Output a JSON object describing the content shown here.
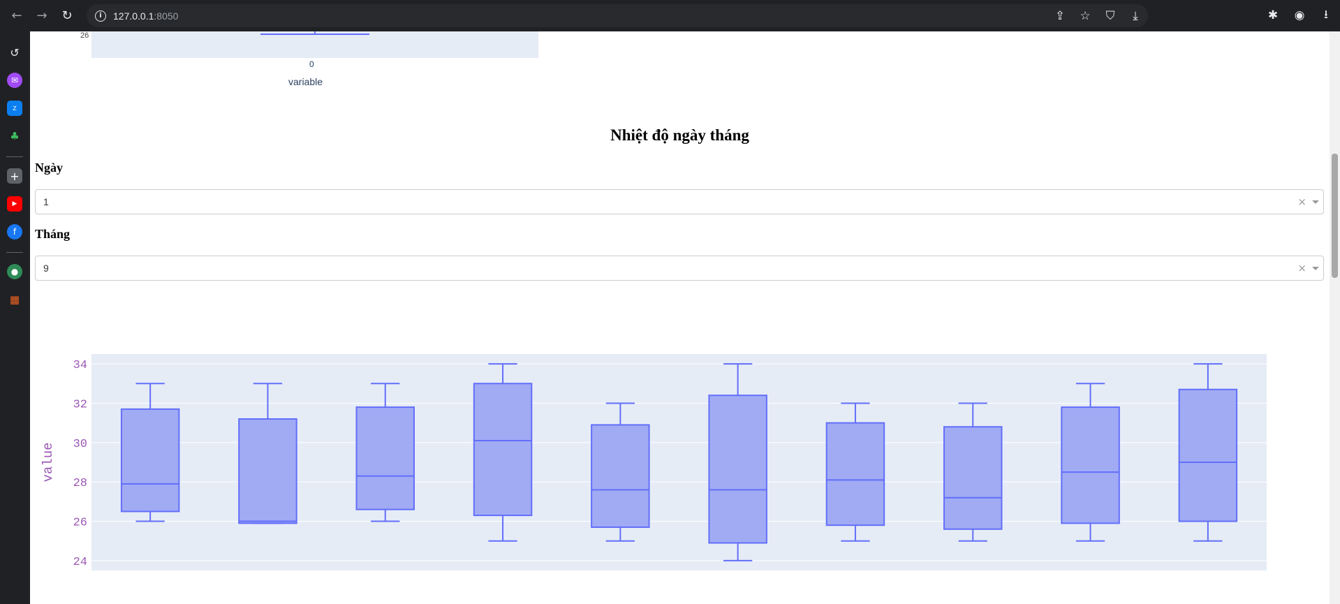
{
  "browser": {
    "url_host": "127.0.0.1",
    "url_port": ":8050"
  },
  "top_plot": {
    "ytick": "26",
    "xtick": "0",
    "xlabel": "variable"
  },
  "section": {
    "title": "Nhiệt độ ngày tháng"
  },
  "day_filter": {
    "label": "Ngày",
    "value": "1",
    "clear": "×"
  },
  "month_filter": {
    "label": "Tháng",
    "value": "9",
    "clear": "×"
  },
  "chart_data": {
    "type": "box",
    "ylabel": "value",
    "ylim": [
      23.5,
      34.5
    ],
    "yticks": [
      24,
      26,
      28,
      30,
      32,
      34
    ],
    "color": "#636efa",
    "fill": "#a0abf4",
    "boxes": [
      {
        "min": 26,
        "q1": 26.5,
        "median": 27.9,
        "q3": 31.7,
        "max": 33
      },
      {
        "min": 25.9,
        "q1": 25.9,
        "median": 26,
        "q3": 31.2,
        "max": 33
      },
      {
        "min": 26,
        "q1": 26.6,
        "median": 28.3,
        "q3": 31.8,
        "max": 33
      },
      {
        "min": 25,
        "q1": 26.3,
        "median": 30.1,
        "q3": 33,
        "max": 34
      },
      {
        "min": 25,
        "q1": 25.7,
        "median": 27.6,
        "q3": 30.9,
        "max": 32
      },
      {
        "min": 24,
        "q1": 24.9,
        "median": 27.6,
        "q3": 32.4,
        "max": 34
      },
      {
        "min": 25,
        "q1": 25.8,
        "median": 28.1,
        "q3": 31,
        "max": 32
      },
      {
        "min": 25,
        "q1": 25.6,
        "median": 27.2,
        "q3": 30.8,
        "max": 32
      },
      {
        "min": 25,
        "q1": 25.9,
        "median": 28.5,
        "q3": 31.8,
        "max": 33
      },
      {
        "min": 25,
        "q1": 26,
        "median": 29,
        "q3": 32.7,
        "max": 34
      }
    ]
  }
}
